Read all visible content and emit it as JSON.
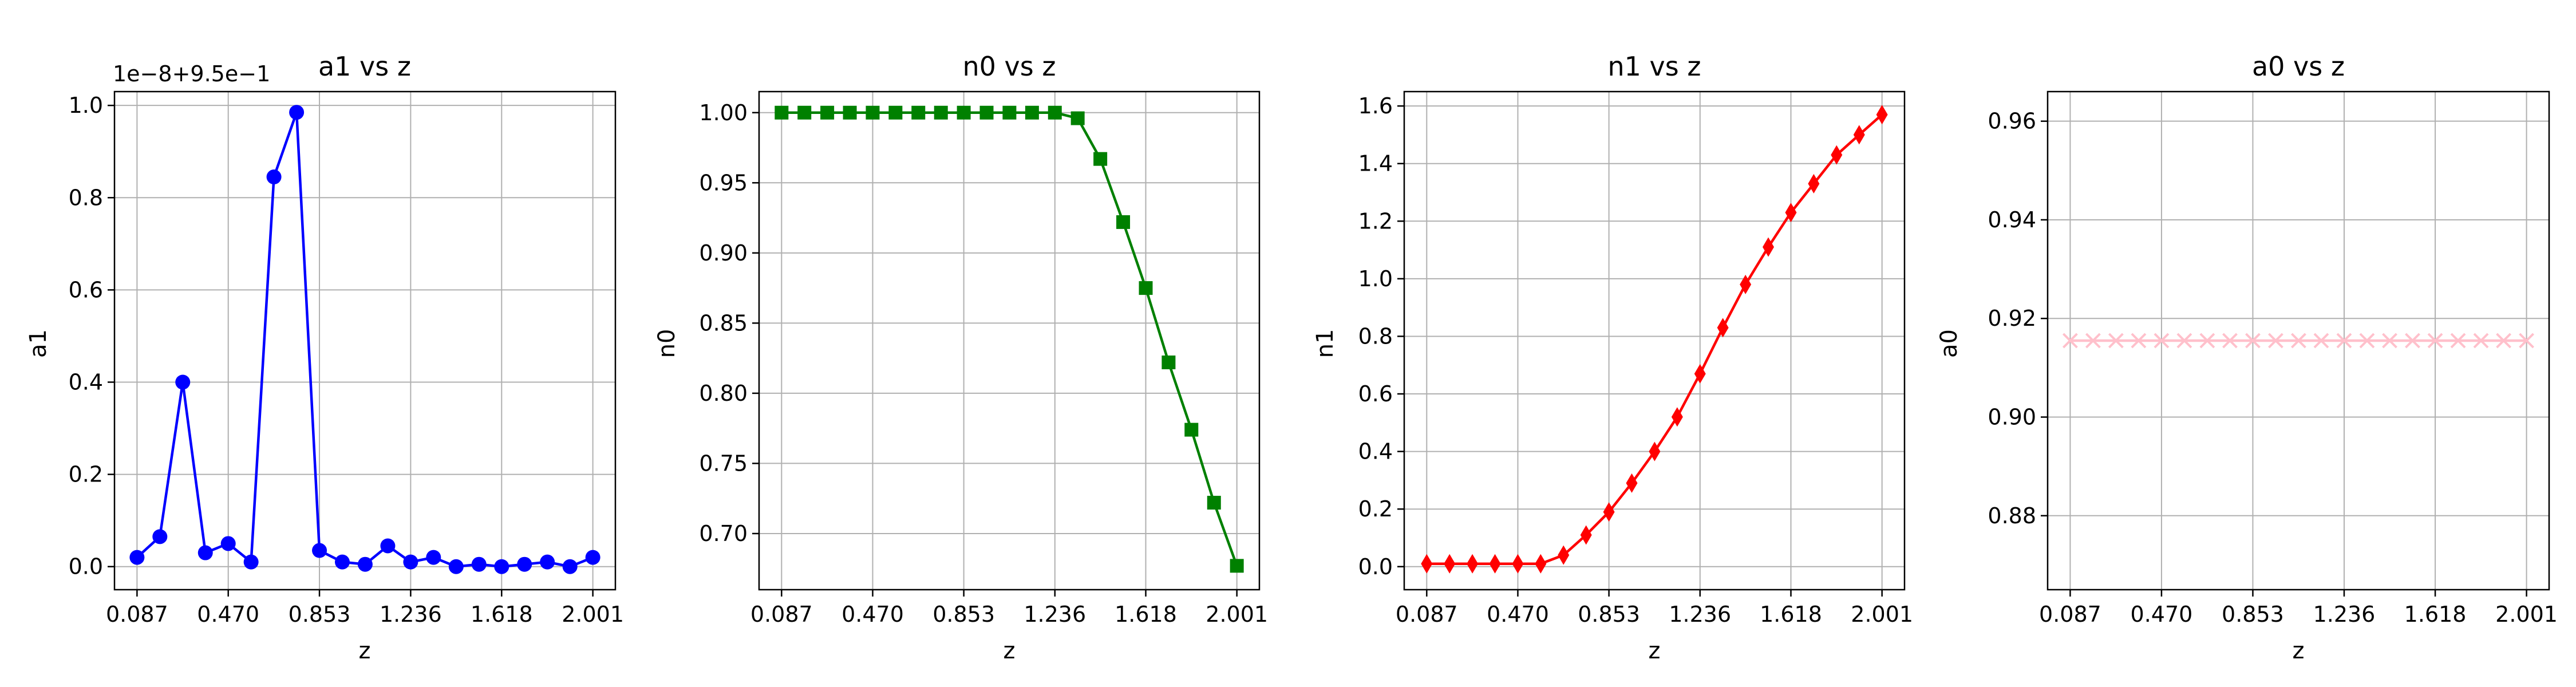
{
  "chart_data": [
    {
      "type": "line",
      "title": "a1 vs z",
      "xlabel": "z",
      "ylabel": "a1",
      "offset_text": "1e−8+9.5e−1",
      "color": "#0000ff",
      "marker": "circle",
      "grid": true,
      "xlim": [
        0.087,
        2.001
      ],
      "ylim": [
        -0.05,
        1.03
      ],
      "xticks": [
        0.087,
        0.47,
        0.853,
        1.236,
        1.618,
        2.001
      ],
      "xtick_labels": [
        "0.087",
        "0.470",
        "0.853",
        "1.236",
        "1.618",
        "2.001"
      ],
      "yticks": [
        0.0,
        0.2,
        0.4,
        0.6,
        0.8,
        1.0
      ],
      "ytick_labels": [
        "0.0",
        "0.2",
        "0.4",
        "0.6",
        "0.8",
        "1.0"
      ],
      "x": [
        0.087,
        0.183,
        0.279,
        0.374,
        0.47,
        0.566,
        0.662,
        0.757,
        0.853,
        0.949,
        1.045,
        1.14,
        1.236,
        1.332,
        1.427,
        1.523,
        1.618,
        1.714,
        1.81,
        1.905,
        2.001
      ],
      "y": [
        0.02,
        0.065,
        0.4,
        0.03,
        0.05,
        0.01,
        0.845,
        0.985,
        0.035,
        0.01,
        0.005,
        0.045,
        0.01,
        0.02,
        0.0,
        0.005,
        0.0,
        0.005,
        0.01,
        0.0,
        0.02
      ]
    },
    {
      "type": "line",
      "title": "n0 vs z",
      "xlabel": "z",
      "ylabel": "n0",
      "color": "#008000",
      "marker": "square",
      "grid": true,
      "xlim": [
        0.087,
        2.001
      ],
      "ylim": [
        0.66,
        1.015
      ],
      "xticks": [
        0.087,
        0.47,
        0.853,
        1.236,
        1.618,
        2.001
      ],
      "xtick_labels": [
        "0.087",
        "0.470",
        "0.853",
        "1.236",
        "1.618",
        "2.001"
      ],
      "yticks": [
        0.7,
        0.75,
        0.8,
        0.85,
        0.9,
        0.95,
        1.0
      ],
      "ytick_labels": [
        "0.70",
        "0.75",
        "0.80",
        "0.85",
        "0.90",
        "0.95",
        "1.00"
      ],
      "x": [
        0.087,
        0.183,
        0.279,
        0.374,
        0.47,
        0.566,
        0.662,
        0.757,
        0.853,
        0.949,
        1.045,
        1.14,
        1.236,
        1.332,
        1.427,
        1.523,
        1.618,
        1.714,
        1.81,
        1.905,
        2.001
      ],
      "y": [
        1.0,
        1.0,
        1.0,
        1.0,
        1.0,
        1.0,
        1.0,
        1.0,
        1.0,
        1.0,
        1.0,
        1.0,
        1.0,
        0.996,
        0.967,
        0.922,
        0.875,
        0.822,
        0.774,
        0.722,
        0.677
      ]
    },
    {
      "type": "line",
      "title": "n1 vs z",
      "xlabel": "z",
      "ylabel": "n1",
      "color": "#ff0000",
      "marker": "thin_diamond",
      "grid": true,
      "xlim": [
        0.087,
        2.001
      ],
      "ylim": [
        -0.08,
        1.65
      ],
      "xticks": [
        0.087,
        0.47,
        0.853,
        1.236,
        1.618,
        2.001
      ],
      "xtick_labels": [
        "0.087",
        "0.470",
        "0.853",
        "1.236",
        "1.618",
        "2.001"
      ],
      "yticks": [
        0.0,
        0.2,
        0.4,
        0.6,
        0.8,
        1.0,
        1.2,
        1.4,
        1.6
      ],
      "ytick_labels": [
        "0.0",
        "0.2",
        "0.4",
        "0.6",
        "0.8",
        "1.0",
        "1.2",
        "1.4",
        "1.6"
      ],
      "x": [
        0.087,
        0.183,
        0.279,
        0.374,
        0.47,
        0.566,
        0.662,
        0.757,
        0.853,
        0.949,
        1.045,
        1.14,
        1.236,
        1.332,
        1.427,
        1.523,
        1.618,
        1.714,
        1.81,
        1.905,
        2.001
      ],
      "y": [
        0.01,
        0.01,
        0.01,
        0.01,
        0.01,
        0.01,
        0.04,
        0.11,
        0.19,
        0.29,
        0.4,
        0.52,
        0.67,
        0.83,
        0.98,
        1.11,
        1.23,
        1.33,
        1.43,
        1.5,
        1.57
      ]
    },
    {
      "type": "line",
      "title": "a0 vs z",
      "xlabel": "z",
      "ylabel": "a0",
      "color": "#ffc0cb",
      "marker": "x",
      "grid": true,
      "xlim": [
        0.087,
        2.001
      ],
      "ylim": [
        0.865,
        0.966
      ],
      "xticks": [
        0.087,
        0.47,
        0.853,
        1.236,
        1.618,
        2.001
      ],
      "xtick_labels": [
        "0.087",
        "0.470",
        "0.853",
        "1.236",
        "1.618",
        "2.001"
      ],
      "yticks": [
        0.88,
        0.9,
        0.92,
        0.94,
        0.96
      ],
      "ytick_labels": [
        "0.88",
        "0.90",
        "0.92",
        "0.94",
        "0.96"
      ],
      "x": [
        0.087,
        0.183,
        0.279,
        0.374,
        0.47,
        0.566,
        0.662,
        0.757,
        0.853,
        0.949,
        1.045,
        1.14,
        1.236,
        1.332,
        1.427,
        1.523,
        1.618,
        1.714,
        1.81,
        1.905,
        2.001
      ],
      "y": [
        0.9155,
        0.9155,
        0.9155,
        0.9155,
        0.9155,
        0.9155,
        0.9155,
        0.9155,
        0.9155,
        0.9155,
        0.9155,
        0.9155,
        0.9155,
        0.9155,
        0.9155,
        0.9155,
        0.9155,
        0.9155,
        0.9155,
        0.9155,
        0.9155
      ]
    }
  ]
}
